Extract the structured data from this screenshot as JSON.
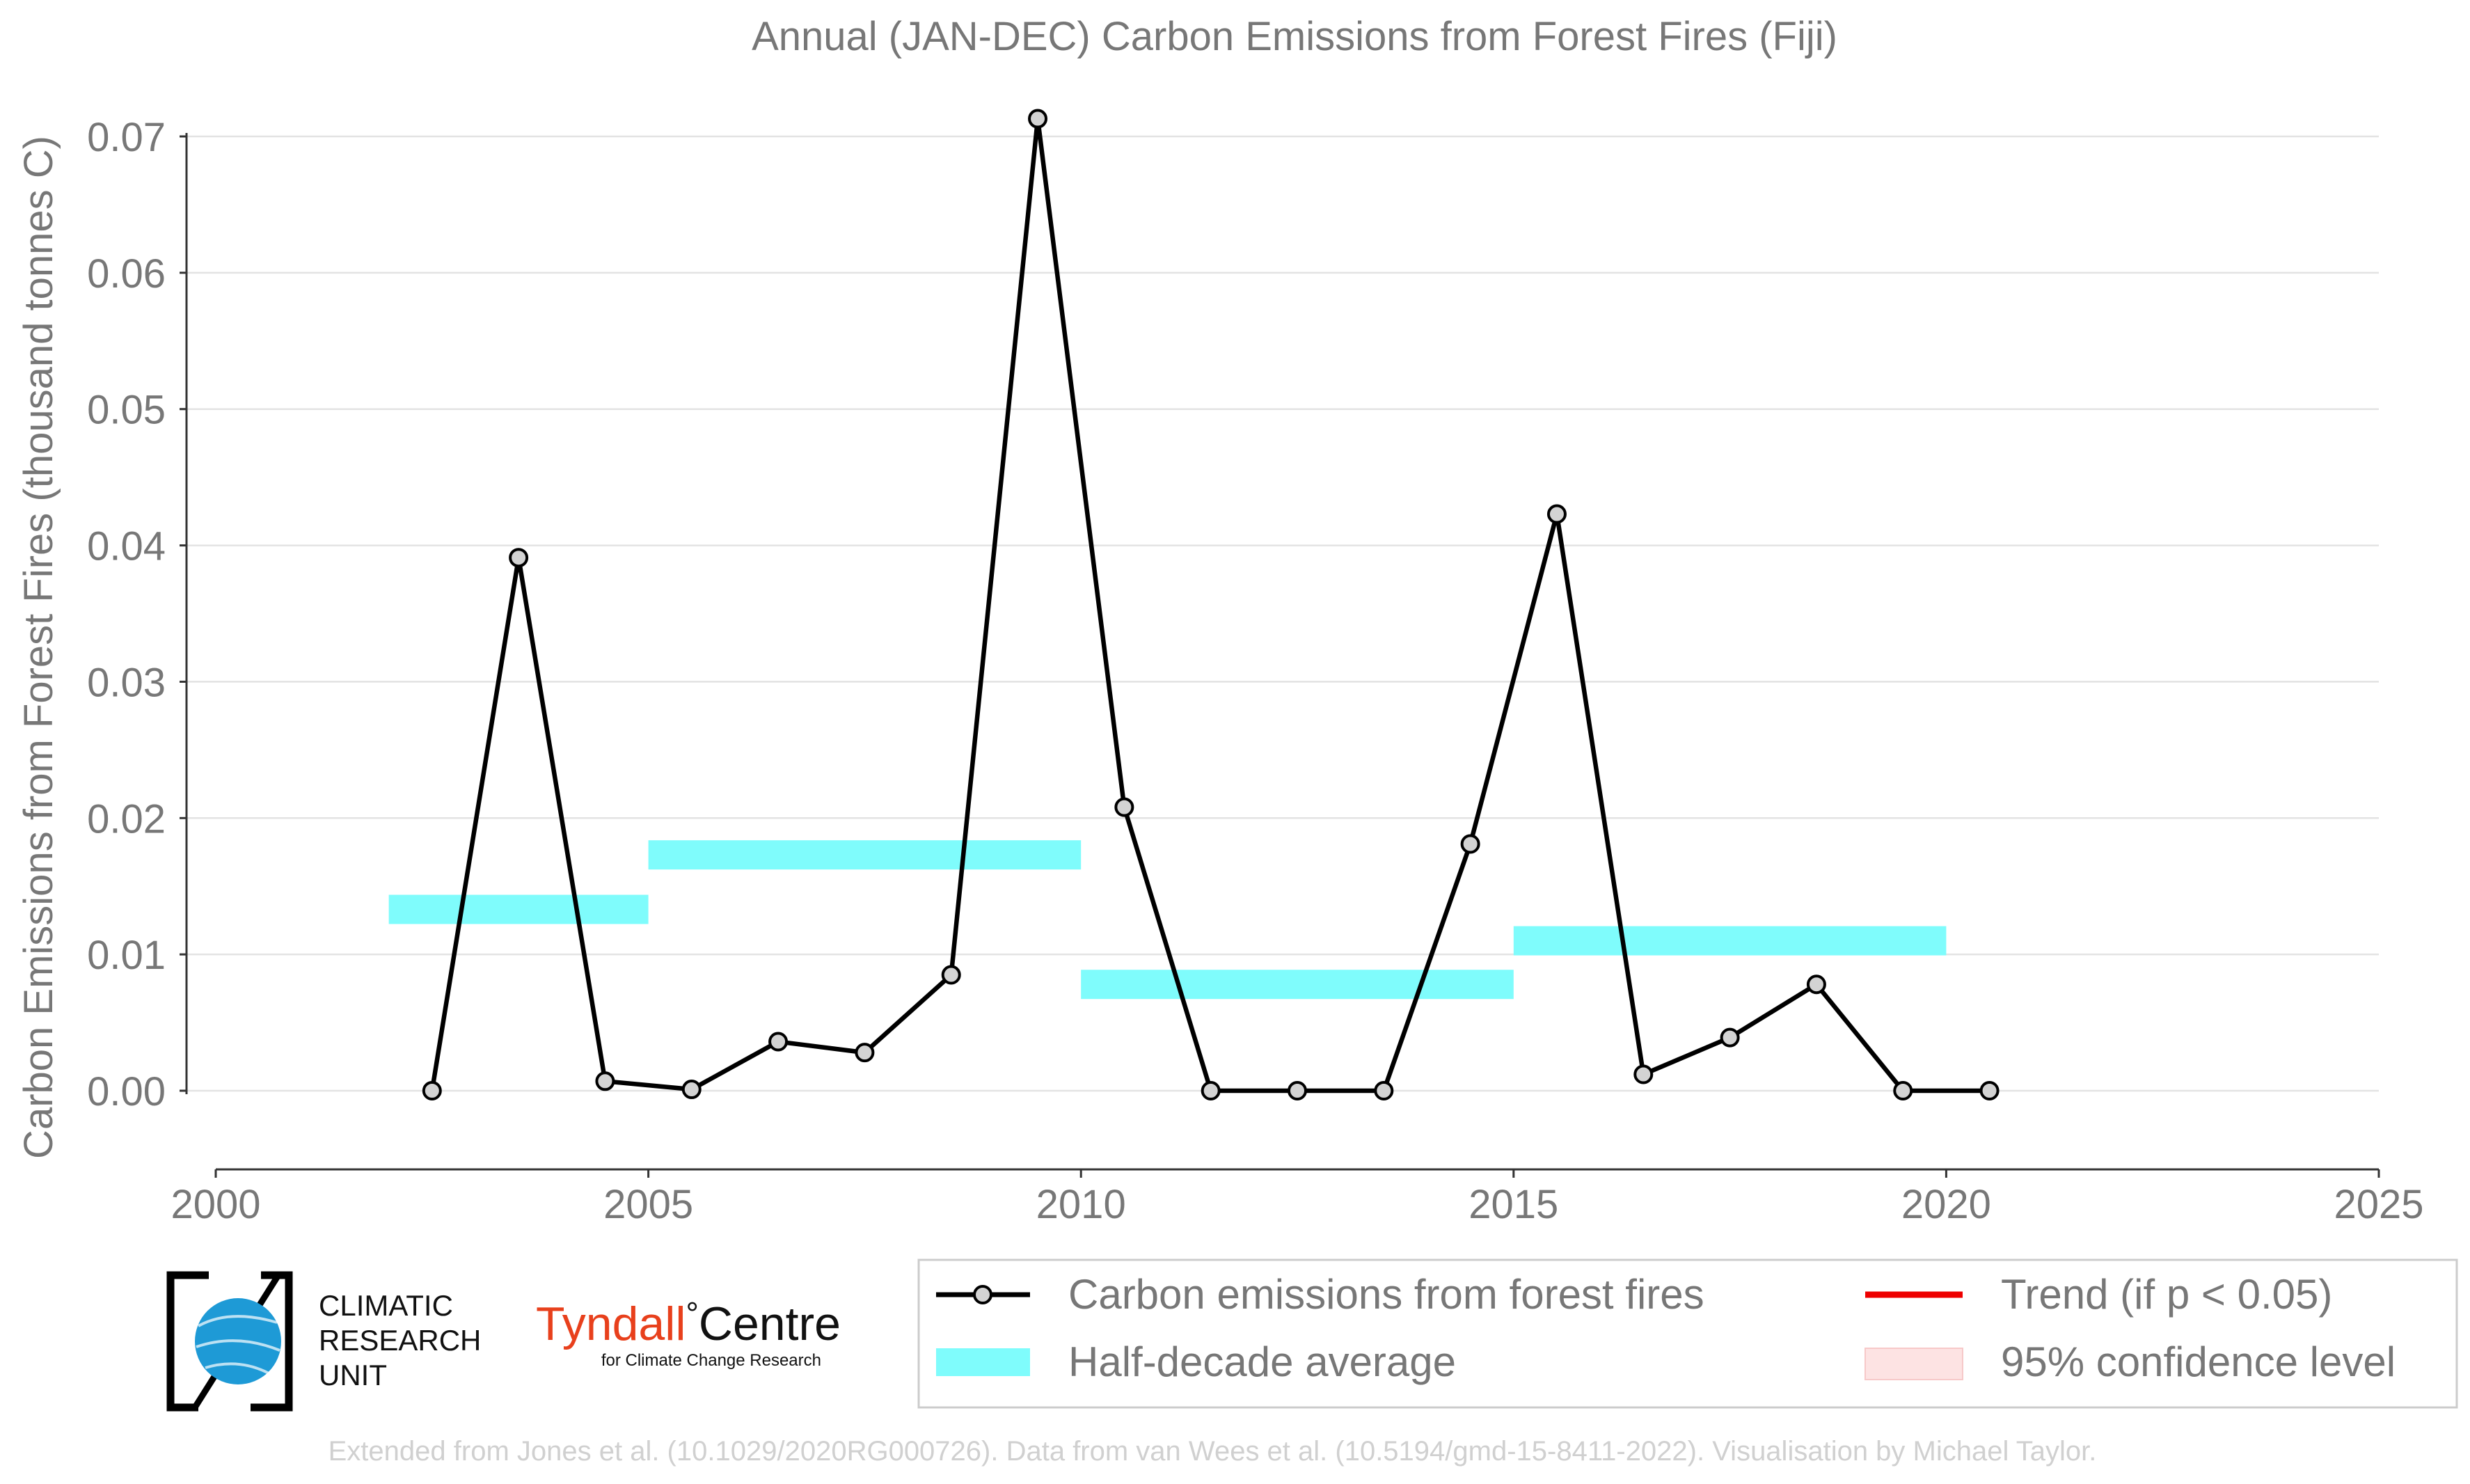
{
  "chart_data": {
    "type": "line",
    "title": "Annual (JAN-DEC) Carbon Emissions from Forest Fires (Fiji)",
    "xlabel": "",
    "ylabel": "Carbon Emissions from Forest Fires (thousand tonnes C)",
    "xlim": [
      2000,
      2025
    ],
    "ylim": [
      -0.006,
      0.0713
    ],
    "x_ticks": [
      "2000",
      "2005",
      "2010",
      "2015",
      "2020",
      "2025"
    ],
    "y_ticks": [
      "0.00",
      "0.01",
      "0.02",
      "0.03",
      "0.04",
      "0.05",
      "0.06",
      "0.07"
    ],
    "grid": "horizontal",
    "series": [
      {
        "name": "Carbon emissions from forest fires",
        "color": "#000000",
        "marker_fill": "#d3d3d3",
        "points": [
          [
            2002.5,
            0.0
          ],
          [
            2003.5,
            0.0391
          ],
          [
            2004.5,
            0.0007
          ],
          [
            2005.5,
            0.0001
          ],
          [
            2006.5,
            0.0036
          ],
          [
            2007.5,
            0.0028
          ],
          [
            2008.5,
            0.0085
          ],
          [
            2009.5,
            0.0713
          ],
          [
            2010.5,
            0.0208
          ],
          [
            2011.5,
            0.0
          ],
          [
            2012.5,
            0.0
          ],
          [
            2013.5,
            0.0
          ],
          [
            2014.5,
            0.0181
          ],
          [
            2015.5,
            0.0423
          ],
          [
            2016.5,
            0.0012
          ],
          [
            2017.5,
            0.0039
          ],
          [
            2018.5,
            0.0078
          ],
          [
            2019.5,
            0.0
          ],
          [
            2020.5,
            0.0
          ]
        ]
      },
      {
        "name": "Half-decade average",
        "color": "#7ffcfc",
        "segments": [
          {
            "from": 2002,
            "to": 2005,
            "value": 0.0133
          },
          {
            "from": 2005,
            "to": 2010,
            "value": 0.0173
          },
          {
            "from": 2010,
            "to": 2015,
            "value": 0.0078
          },
          {
            "from": 2015,
            "to": 2020,
            "value": 0.011
          }
        ]
      }
    ],
    "legend": {
      "placement": "bottom-right",
      "items": [
        {
          "label": "Carbon emissions from forest fires",
          "kind": "line-marker",
          "color": "#000000"
        },
        {
          "label": "Trend (if p < 0.05)",
          "kind": "line",
          "color": "#ee0000"
        },
        {
          "label": "Half-decade average",
          "kind": "band",
          "color": "#7ffcfc"
        },
        {
          "label": "95% confidence level",
          "kind": "band",
          "color": "#fde3e3"
        }
      ]
    }
  },
  "logos": {
    "cru_line1": "CLIMATIC",
    "cru_line2": "RESEARCH",
    "cru_line3": "UNIT",
    "tyndall_name": "Tyndall",
    "tyndall_centre": "Centre",
    "tyndall_degree": "°",
    "tyndall_sub": "for Climate Change Research",
    "tyndall_color": "#e8401c",
    "cru_globe_color": "#1e9ad6"
  },
  "footer": {
    "credit": "Extended from Jones et al. (10.1029/2020RG000726). Data from van Wees et al. (10.5194/gmd-15-8411-2022). Visualisation by Michael Taylor."
  }
}
